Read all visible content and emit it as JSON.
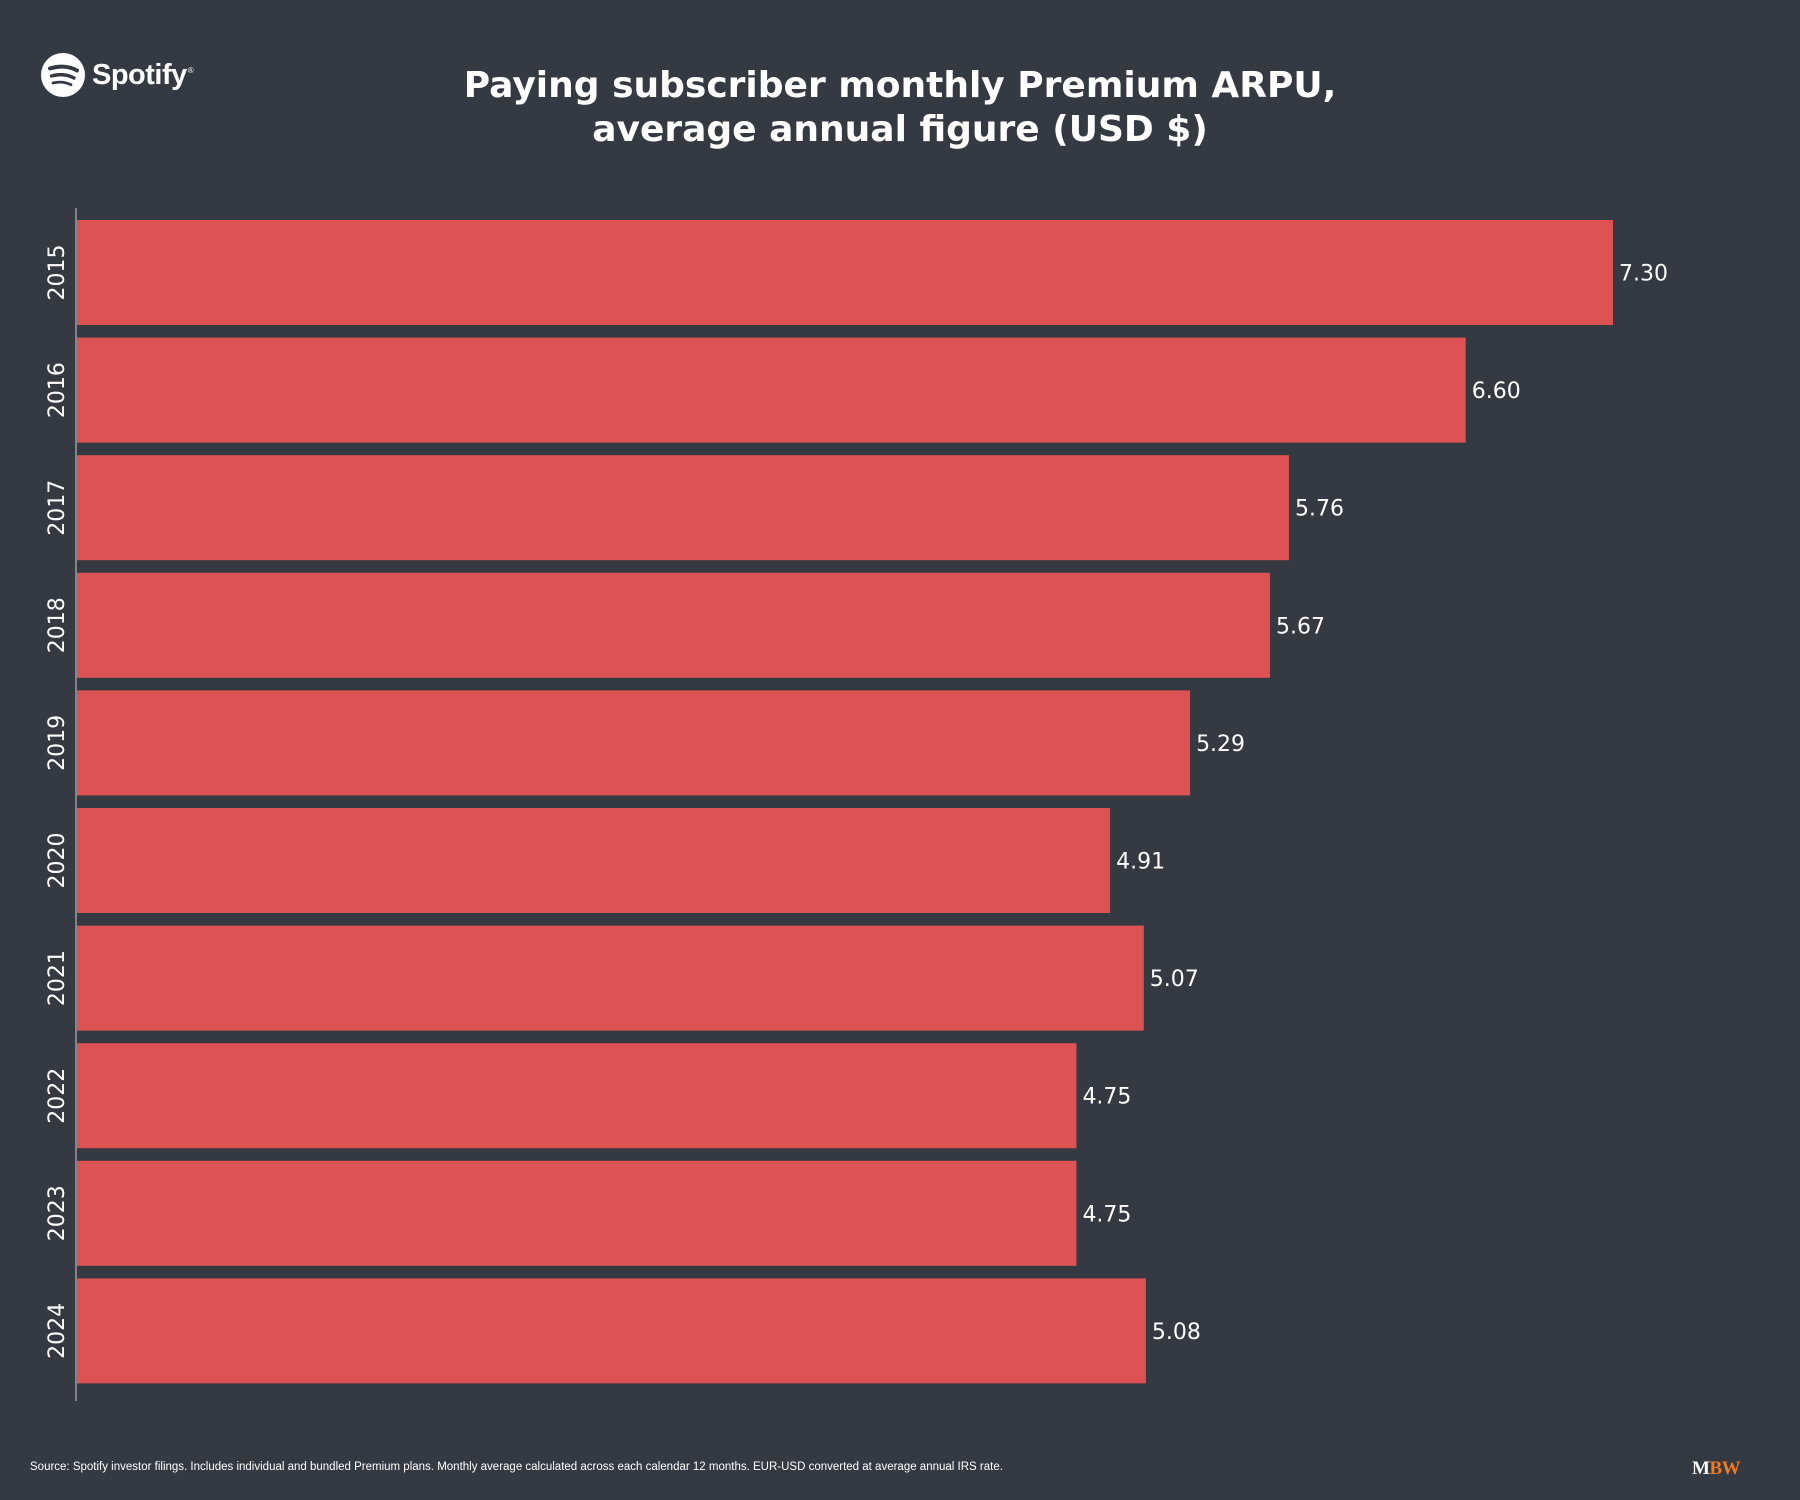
{
  "branding": {
    "logo_text": "Spotify",
    "logo_registered": "®",
    "publisher_m": "M",
    "publisher_bw": "BW"
  },
  "footer": {
    "source": "Source: Spotify investor filings. Includes individual and bundled Premium plans. Monthly average calculated across each calendar 12 months. EUR-USD converted at average annual IRS rate."
  },
  "colors": {
    "background": "#343942",
    "bar": "#dd5353",
    "text": "#ffffff",
    "spotify_green": "#ffffff",
    "mbw_orange": "#f07a22"
  },
  "chart_data": {
    "type": "bar",
    "orientation": "horizontal",
    "title_line1": "Paying subscriber monthly Premium ARPU,",
    "title_line2": "average annual figure (USD $)",
    "categories": [
      "2015",
      "2016",
      "2017",
      "2018",
      "2019",
      "2020",
      "2021",
      "2022",
      "2023",
      "2024"
    ],
    "values": [
      7.3,
      6.6,
      5.76,
      5.67,
      5.29,
      4.91,
      5.07,
      4.75,
      4.75,
      5.08
    ],
    "labels": [
      "7.30",
      "6.60",
      "5.76",
      "5.67",
      "5.29",
      "4.91",
      "5.07",
      "4.75",
      "4.75",
      "5.08"
    ],
    "xlim": [
      0,
      7.3
    ],
    "xlabel": "",
    "ylabel": "",
    "grid": false,
    "legend": "none"
  }
}
